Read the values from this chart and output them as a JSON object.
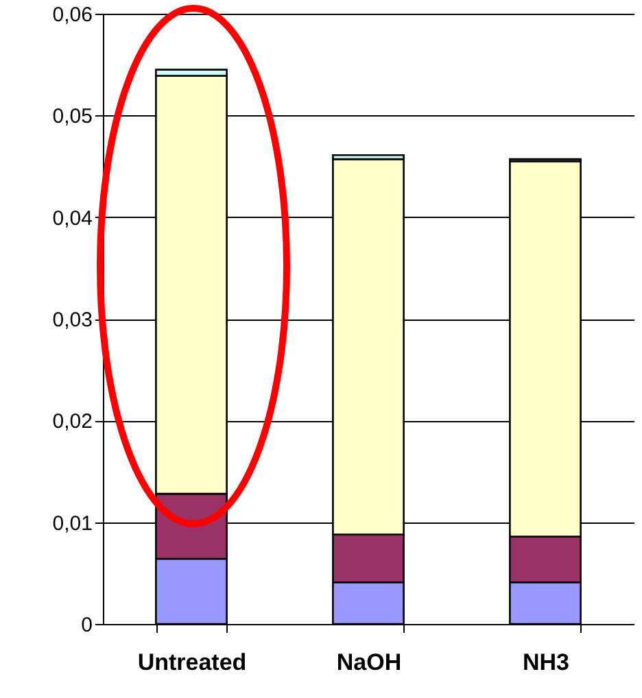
{
  "chart_data": {
    "type": "bar",
    "stacked": true,
    "categories": [
      "Untreated",
      "NaOH",
      "NH3"
    ],
    "series": [
      {
        "color": "#9999ff",
        "values": [
          0.0064,
          0.0041,
          0.0041
        ]
      },
      {
        "color": "#993366",
        "values": [
          0.0064,
          0.0047,
          0.0045
        ]
      },
      {
        "color": "#ffffcc",
        "values": [
          0.0411,
          0.0369,
          0.0369
        ]
      },
      {
        "color": "#ccffff",
        "values": [
          0.0006,
          0.0004,
          0.0002
        ]
      }
    ],
    "ylim": [
      0,
      0.06
    ],
    "yticks": [
      {
        "value": 0,
        "label": "0"
      },
      {
        "value": 0.01,
        "label": "0,01"
      },
      {
        "value": 0.02,
        "label": "0,02"
      },
      {
        "value": 0.03,
        "label": "0,03"
      },
      {
        "value": 0.04,
        "label": "0,04"
      },
      {
        "value": 0.05,
        "label": "0,05"
      },
      {
        "value": 0.06,
        "label": "0,06"
      }
    ],
    "grid": "y"
  }
}
